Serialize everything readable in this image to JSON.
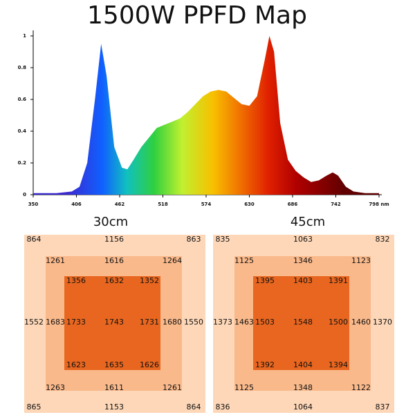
{
  "title": "1500W PPFD Map",
  "chart_data": {
    "type": "area",
    "x": [
      350,
      380,
      400,
      410,
      420,
      430,
      438,
      445,
      455,
      465,
      472,
      480,
      490,
      500,
      510,
      520,
      530,
      540,
      550,
      560,
      570,
      580,
      590,
      600,
      610,
      620,
      630,
      640,
      650,
      656,
      662,
      670,
      680,
      690,
      700,
      710,
      720,
      730,
      738,
      745,
      755,
      765,
      780,
      798
    ],
    "values": [
      0.01,
      0.01,
      0.02,
      0.05,
      0.2,
      0.6,
      0.95,
      0.75,
      0.3,
      0.17,
      0.16,
      0.22,
      0.3,
      0.36,
      0.42,
      0.44,
      0.46,
      0.48,
      0.52,
      0.57,
      0.62,
      0.65,
      0.66,
      0.65,
      0.61,
      0.57,
      0.56,
      0.62,
      0.85,
      1.0,
      0.9,
      0.45,
      0.22,
      0.15,
      0.11,
      0.08,
      0.09,
      0.12,
      0.14,
      0.12,
      0.05,
      0.02,
      0.01,
      0.01
    ],
    "xlim": [
      350,
      798
    ],
    "ylim": [
      0,
      1
    ],
    "xticks": [
      350,
      406,
      462,
      518,
      574,
      630,
      686,
      742,
      {
        "value": 798,
        "label": "798 nm"
      }
    ],
    "yticks": [
      0,
      0.2,
      0.4,
      0.6,
      0.8,
      1
    ]
  },
  "ppfd_maps": [
    {
      "label": "30cm",
      "rows": [
        [
          864,
          1156,
          863
        ],
        [
          1261,
          1616,
          1264
        ],
        [
          1356,
          1632,
          1352
        ],
        [
          1552,
          1683,
          1733,
          1743,
          1731,
          1680,
          1550
        ],
        [
          1623,
          1635,
          1626
        ],
        [
          1263,
          1611,
          1261
        ],
        [
          865,
          1153,
          864
        ]
      ]
    },
    {
      "label": "45cm",
      "rows": [
        [
          835,
          1063,
          832
        ],
        [
          1125,
          1346,
          1123
        ],
        [
          1395,
          1403,
          1391
        ],
        [
          1373,
          1463,
          1503,
          1548,
          1500,
          1460,
          1370
        ],
        [
          1392,
          1404,
          1394
        ],
        [
          1125,
          1348,
          1122
        ],
        [
          836,
          1064,
          837
        ]
      ]
    }
  ]
}
